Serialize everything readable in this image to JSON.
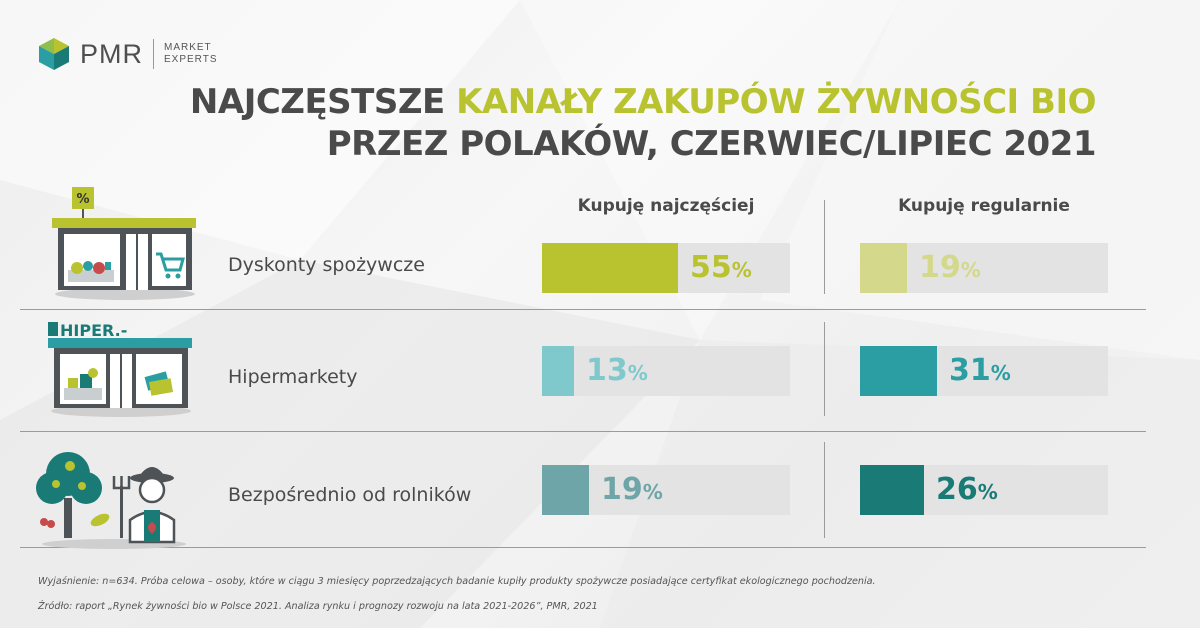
{
  "logo": {
    "name": "PMR",
    "sub_line1": "MARKET",
    "sub_line2": "EXPERTS"
  },
  "title": {
    "line1_part1": "NAJCZĘSTSZE ",
    "line1_highlight": "KANAŁY ZAKUPÓW ŻYWNOŚCI BIO",
    "line2": "PRZEZ POLAKÓW, CZERWIEC/LIPIEC 2021"
  },
  "colors": {
    "green_strong": "#b9c32f",
    "green_light": "#d4d88a",
    "teal_light": "#7fc9cc",
    "teal_mid": "#2a9ea2",
    "teal_grey": "#6ea5a8",
    "teal_dark": "#1a7a76",
    "track": "#e3e3e3"
  },
  "icons": {
    "discount_store": "discount-store-icon",
    "hypermarket": "hypermarket-icon",
    "farmer": "farmer-icon"
  },
  "hypermarket_sign": "HIPER.-",
  "discount_sign": "%",
  "chart_data": {
    "type": "bar",
    "categories": [
      "Dyskonty spożywcze",
      "Hipermarkety",
      "Bezpośrednio od rolników"
    ],
    "series": [
      {
        "name": "Kupuję najczęściej",
        "values": [
          55,
          13,
          19
        ],
        "labels": [
          "55",
          "13",
          "19"
        ]
      },
      {
        "name": "Kupuję regularnie",
        "values": [
          19,
          31,
          26
        ],
        "labels": [
          "19",
          "31",
          "26"
        ]
      }
    ],
    "unit": "%",
    "ylim": [
      0,
      100
    ],
    "grid": false,
    "legend": "top"
  },
  "footnote": {
    "explanation": "Wyjaśnienie: n=634. Próba celowa – osoby, które w ciągu 3 miesięcy poprzedzających badanie kupiły produkty spożywcze posiadające certyfikat ekologicznego pochodzenia.",
    "source": "Źródło: raport „Rynek żywności bio w Polsce 2021. Analiza rynku i prognozy rozwoju na lata 2021-2026”, PMR, 2021"
  }
}
